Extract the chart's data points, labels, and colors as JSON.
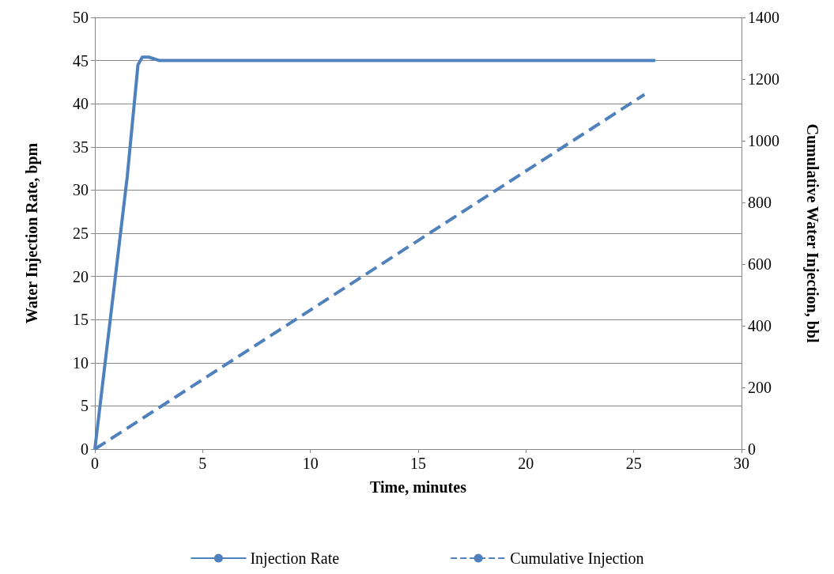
{
  "chart_data": {
    "type": "line",
    "xlabel": "Time, minutes",
    "ylabel": "Water Injection Rate, bpm",
    "y2label": "Cumulative Water Injection, bbl",
    "xlim": [
      0,
      30
    ],
    "xticks": [
      0,
      5,
      10,
      15,
      20,
      25,
      30
    ],
    "ylim": [
      0,
      50
    ],
    "yticks": [
      0,
      5,
      10,
      15,
      20,
      25,
      30,
      35,
      40,
      45,
      50
    ],
    "y2lim": [
      0,
      1400
    ],
    "y2ticks": [
      0,
      200,
      400,
      600,
      800,
      1000,
      1200,
      1400
    ],
    "grid": "y",
    "legend": "bottom",
    "marker": "none",
    "series": [
      {
        "name": "Injection Rate",
        "color": "#4f81bd",
        "line_style": "solid",
        "x": [
          0,
          1,
          1.5,
          2,
          2.2,
          2.5,
          3,
          26
        ],
        "values": [
          0,
          21,
          31.5,
          44.5,
          45.4,
          45.4,
          45,
          45
        ]
      },
      {
        "name": "Cumulative Injection",
        "color": "#4f81bd",
        "line_style": "dashed",
        "axis": "y2",
        "x": [
          0,
          25.5
        ],
        "values": [
          0,
          1150
        ]
      }
    ]
  }
}
